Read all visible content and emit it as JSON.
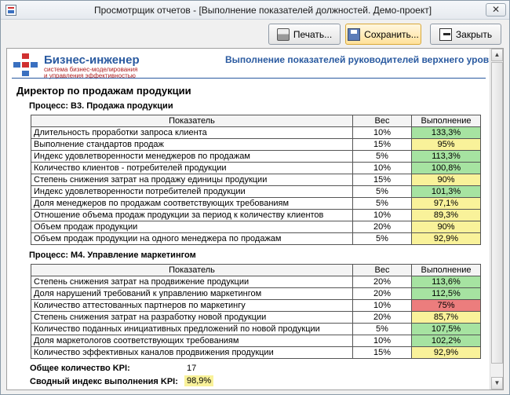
{
  "window": {
    "title": "Просмотрщик отчетов - [Выполнение показателей должностей. Демо-проект]",
    "close_glyph": "✕"
  },
  "toolbar": {
    "print_label": "Печать...",
    "save_label": "Сохранить...",
    "close_label": "Закрыть"
  },
  "report": {
    "brand_name": "Бизнес-инженер",
    "brand_sub": "система бизнес-моделирования\nи управления эффективностью",
    "header_title": "Выполнение показателей руководителей верхнего уровня",
    "position_title": "Директор по продажам продукции",
    "columns": {
      "indicator": "Показатель",
      "weight": "Вес",
      "result": "Выполнение"
    },
    "processes": [
      {
        "label": "Процесс:  В3. Продажа продукции",
        "rows": [
          {
            "indicator": "Длительность проработки запроса клиента",
            "weight": "10%",
            "result": "133,3%",
            "status": "g"
          },
          {
            "indicator": "Выполнение стандартов продаж",
            "weight": "15%",
            "result": "95%",
            "status": "y"
          },
          {
            "indicator": "Индекс удовлетворенности менеджеров по продажам",
            "weight": "5%",
            "result": "113,3%",
            "status": "g"
          },
          {
            "indicator": "Количество клиентов - потребителей продукции",
            "weight": "10%",
            "result": "100,8%",
            "status": "g"
          },
          {
            "indicator": "Степень снижения затрат на продажу единицы продукции",
            "weight": "15%",
            "result": "90%",
            "status": "y"
          },
          {
            "indicator": "Индекс удовлетворенности потребителей продукции",
            "weight": "5%",
            "result": "101,3%",
            "status": "g"
          },
          {
            "indicator": "Доля менеджеров по продажам соответствующих требованиям",
            "weight": "5%",
            "result": "97,1%",
            "status": "y"
          },
          {
            "indicator": "Отношение объема продаж продукции за период к количеству клиентов",
            "weight": "10%",
            "result": "89,3%",
            "status": "y"
          },
          {
            "indicator": "Объем продаж продукции",
            "weight": "20%",
            "result": "90%",
            "status": "y"
          },
          {
            "indicator": "Объем продаж продукции на одного менеджера по продажам",
            "weight": "5%",
            "result": "92,9%",
            "status": "y"
          }
        ]
      },
      {
        "label": "Процесс:  М4. Управление маркетингом",
        "rows": [
          {
            "indicator": "Степень снижения затрат на продвижение продукции",
            "weight": "20%",
            "result": "113,6%",
            "status": "g"
          },
          {
            "indicator": "Доля нарушений требований к управлению маркетингом",
            "weight": "20%",
            "result": "112,5%",
            "status": "g"
          },
          {
            "indicator": "Количество аттестованных партнеров по маркетингу",
            "weight": "10%",
            "result": "75%",
            "status": "r"
          },
          {
            "indicator": "Степень снижения затрат на разработку новой продукции",
            "weight": "20%",
            "result": "85,7%",
            "status": "y"
          },
          {
            "indicator": "Количество поданных инициативных предложений по новой продукции",
            "weight": "5%",
            "result": "107,5%",
            "status": "g"
          },
          {
            "indicator": "Доля маркетологов соответствующих требованиям",
            "weight": "10%",
            "result": "102,2%",
            "status": "g"
          },
          {
            "indicator": "Количество эффективных каналов продвижения продукции",
            "weight": "15%",
            "result": "92,9%",
            "status": "y"
          }
        ]
      }
    ],
    "summary": {
      "kpi_count_label": "Общее количество KPI:",
      "kpi_count_value": "17",
      "index_label": "Сводный индекс выполнения KPI:",
      "index_value": "98,9%"
    }
  },
  "colors": {
    "good": "#a6e3a1",
    "warning": "#f9f29a",
    "bad": "#ec7d7d",
    "brand_blue": "#2a5aa0",
    "brand_red": "#b02020"
  },
  "icons": [
    "app-report-icon",
    "printer-icon",
    "save-icon",
    "exit-door-icon",
    "scroll-up-icon",
    "scroll-down-icon"
  ]
}
